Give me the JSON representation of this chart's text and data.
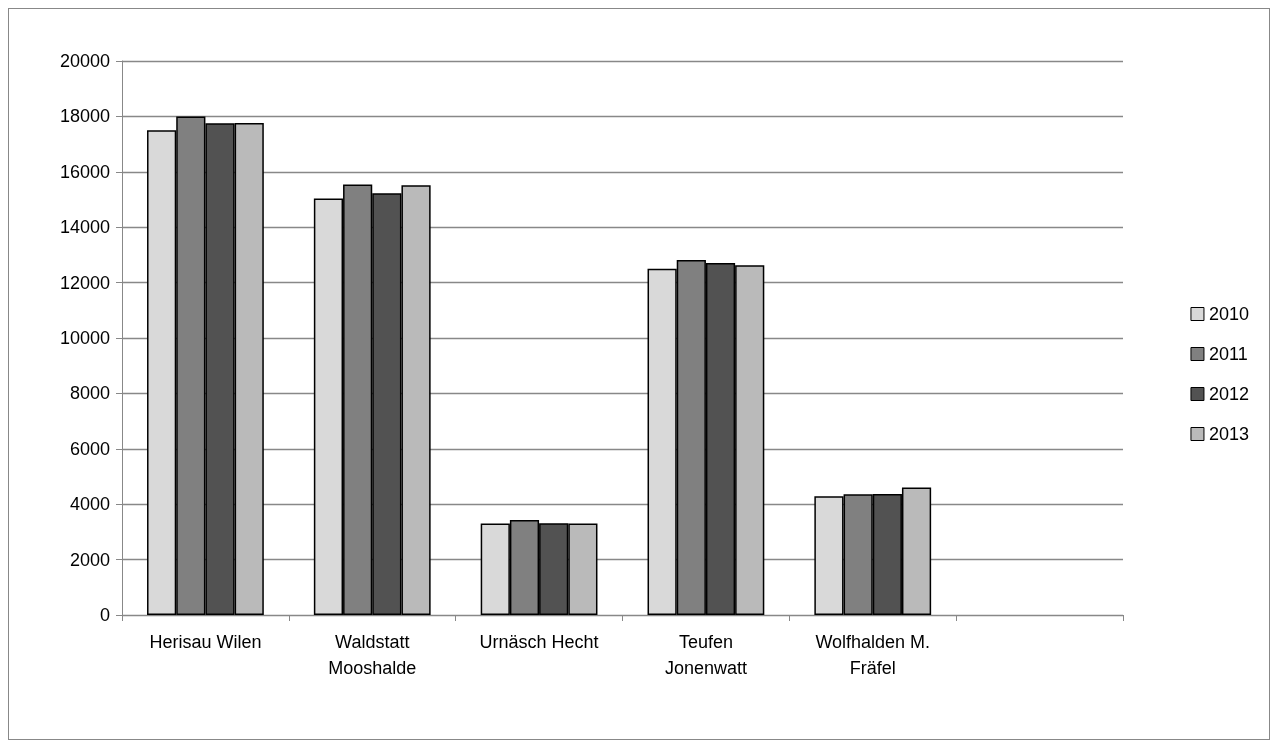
{
  "chart_data": {
    "type": "bar",
    "categories": [
      "Herisau Wilen",
      "Waldstatt\nMooshalde",
      "Urnäsch Hecht",
      "Teufen\nJonenwatt",
      "Wolfhalden M.\nFräfel",
      null
    ],
    "series": [
      {
        "name": "2010",
        "color": "#d9d9d9",
        "values": [
          17500,
          15040,
          3300,
          12500,
          4290,
          null
        ]
      },
      {
        "name": "2011",
        "color": "#808080",
        "values": [
          18000,
          15540,
          3430,
          12820,
          4360,
          null
        ]
      },
      {
        "name": "2012",
        "color": "#525252",
        "values": [
          17750,
          15230,
          3310,
          12710,
          4370,
          null
        ]
      },
      {
        "name": "2013",
        "color": "#bababa",
        "values": [
          17760,
          15510,
          3300,
          12630,
          4600,
          null
        ]
      }
    ],
    "ylim": [
      0,
      20000
    ],
    "yticks": [
      0,
      2000,
      4000,
      6000,
      8000,
      10000,
      12000,
      14000,
      16000,
      18000,
      20000
    ],
    "grid": "y",
    "legend": "right"
  }
}
